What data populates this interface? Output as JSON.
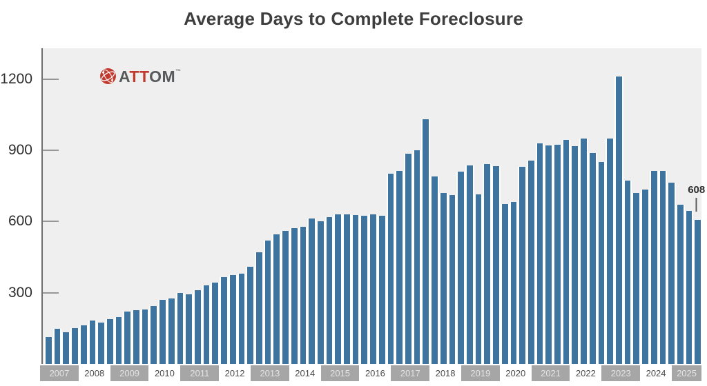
{
  "title": "Average Days to Complete Foreclosure",
  "logo": {
    "brand": "ATTOM",
    "part_gray_1": "A",
    "part_red": "TT",
    "part_gray_2": "OM",
    "tm": "™",
    "red_color": "#c13a2e",
    "gray_color": "#58595b"
  },
  "chart_data": {
    "type": "bar",
    "title": "Average Days to Complete Foreclosure",
    "xlabel": "",
    "ylabel": "",
    "yticks": [
      300,
      600,
      900,
      1200
    ],
    "ylim": [
      0,
      1330
    ],
    "grid": false,
    "legend": "none",
    "bar_color": "#3e75a0",
    "plot_bg": "#f0efef",
    "x_unit": "quarterly bars grouped by year",
    "years": [
      {
        "year": "2007",
        "values": [
          113,
          147,
          134,
          151
        ]
      },
      {
        "year": "2008",
        "values": [
          164,
          184,
          174,
          188
        ]
      },
      {
        "year": "2009",
        "values": [
          199,
          221,
          227,
          229
        ]
      },
      {
        "year": "2010",
        "values": [
          244,
          269,
          276,
          300
        ]
      },
      {
        "year": "2011",
        "values": [
          292,
          312,
          331,
          343
        ]
      },
      {
        "year": "2012",
        "values": [
          365,
          376,
          382,
          409
        ]
      },
      {
        "year": "2013",
        "values": [
          471,
          521,
          545,
          562
        ]
      },
      {
        "year": "2014",
        "values": [
          572,
          578,
          614,
          601
        ]
      },
      {
        "year": "2015",
        "values": [
          620,
          629,
          631,
          628
        ]
      },
      {
        "year": "2016",
        "values": [
          625,
          629,
          624,
          803
        ]
      },
      {
        "year": "2017",
        "values": [
          814,
          885,
          900,
          1031
        ]
      },
      {
        "year": "2018",
        "values": [
          791,
          720,
          712,
          811
        ]
      },
      {
        "year": "2019",
        "values": [
          836,
          714,
          842,
          834
        ]
      },
      {
        "year": "2020",
        "values": [
          673,
          684,
          830,
          856
        ]
      },
      {
        "year": "2021",
        "values": [
          930,
          922,
          925,
          943
        ]
      },
      {
        "year": "2022",
        "values": [
          918,
          949,
          888,
          852
        ]
      },
      {
        "year": "2023",
        "values": [
          950,
          1212,
          772,
          720
        ]
      },
      {
        "year": "2024",
        "values": [
          735,
          814,
          814,
          763
        ]
      },
      {
        "year": "2025",
        "values": [
          671,
          645,
          608
        ]
      }
    ],
    "annotation": {
      "label": "608",
      "target": "last bar (2025 Q3)"
    }
  }
}
